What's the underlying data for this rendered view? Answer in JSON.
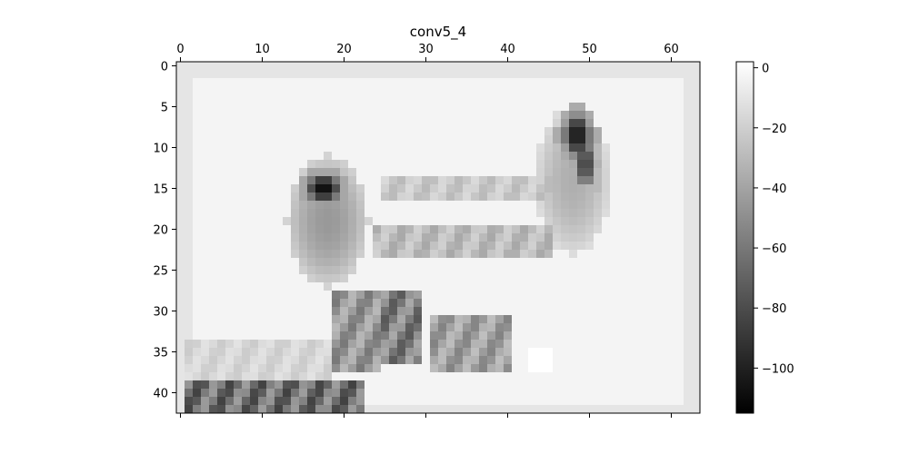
{
  "chart_data": {
    "type": "heatmap",
    "title": "conv5_4",
    "colormap": "gray",
    "grid": false,
    "x_axis_position": "top",
    "x_range": [
      -0.5,
      63.5
    ],
    "y_range": [
      -0.5,
      42.5
    ],
    "rows": 43,
    "cols": 64,
    "x_ticks": [
      0,
      10,
      20,
      30,
      40,
      50,
      60
    ],
    "y_ticks": [
      0,
      5,
      10,
      15,
      20,
      25,
      30,
      35,
      40
    ],
    "colorbar": {
      "range": [
        -115,
        2
      ],
      "ticks": [
        0,
        -20,
        -40,
        -60,
        -80,
        -100
      ],
      "tick_labels": [
        "0",
        "−20",
        "−40",
        "−60",
        "−80",
        "−100"
      ]
    },
    "background_value": -3,
    "features": [
      {
        "name": "border",
        "value": -10
      },
      {
        "name": "left-dog-head",
        "cx": 17.5,
        "cy": 15,
        "rx": 2.2,
        "ry": 1.8,
        "value": -110
      },
      {
        "name": "left-dog-outline",
        "cx": 18,
        "cy": 19,
        "rx": 5,
        "ry": 8,
        "value": -45
      },
      {
        "name": "right-dog-head",
        "cx": 48.5,
        "cy": 8.5,
        "rx": 1.8,
        "ry": 2.8,
        "value": -105
      },
      {
        "name": "right-dog-neck",
        "cx": 49.5,
        "cy": 12,
        "rx": 1.5,
        "ry": 3,
        "value": -85
      },
      {
        "name": "right-dog-outline",
        "cx": 48,
        "cy": 14,
        "rx": 4.5,
        "ry": 9,
        "value": -35
      },
      {
        "name": "bar-upper",
        "x0": 25,
        "x1": 45,
        "y0": 14,
        "y1": 16,
        "value": -30
      },
      {
        "name": "bar-lower",
        "x0": 24,
        "x1": 45,
        "y0": 20,
        "y1": 23,
        "value": -38
      },
      {
        "name": "leg-left",
        "x0": 19,
        "x1": 24,
        "y0": 28,
        "y1": 37,
        "value": -60
      },
      {
        "name": "leg-mid",
        "x0": 25,
        "x1": 29,
        "y0": 28,
        "y1": 36,
        "value": -75
      },
      {
        "name": "leg-right",
        "x0": 31,
        "x1": 40,
        "y0": 31,
        "y1": 37,
        "value": -55
      },
      {
        "name": "ground-strip",
        "x0": 1,
        "x1": 22,
        "y0": 39,
        "y1": 42,
        "value": -85
      },
      {
        "name": "ground-band",
        "x0": 1,
        "x1": 18,
        "y0": 34,
        "y1": 38,
        "value": -22
      },
      {
        "name": "bright-patch",
        "cx": 44,
        "cy": 36,
        "rx": 1.5,
        "ry": 1.5,
        "value": 2
      }
    ]
  }
}
